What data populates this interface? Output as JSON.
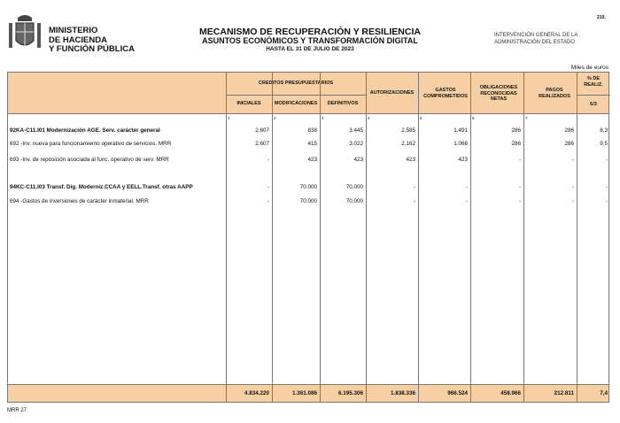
{
  "header": {
    "ministry": [
      "MINISTERIO",
      "DE HACIENDA",
      "Y FUNCIÓN PÚBLICA"
    ],
    "title": "MECANISMO DE RECUPERACIÓN Y RESILIENCIA",
    "subtitle": "ASUNTOS ECONÓMICOS Y TRANSFORMACIÓN DIGITAL",
    "date": "HASTA EL 31 DE JULIO DE 2023",
    "intervencion": [
      "INTERVENCIÓN GENERAL DE LA",
      "ADMINISTRACIÓN DEL ESTADO"
    ],
    "page": "219.",
    "units": "Miles de euros"
  },
  "table": {
    "group_header": "CREDITOS PRESUPUESTARIOS",
    "columns": [
      "INICIALES",
      "MODIFICACIONES",
      "DEFINITIVOS",
      "AUTORIZACIONES",
      "GASTOS COMPROMETIDOS",
      "OBLIGACIONES RECONOCIDAS NETAS",
      "PAGOS REALIZADOS",
      "% DE REALIZ."
    ],
    "pct_formula": "6/3",
    "col_numbers": [
      "1",
      "2",
      "3",
      "4",
      "5",
      "6",
      "7"
    ],
    "rows": [
      {
        "desc": "92KA-C11.I01 Modernización AGE. Serv. carácter general",
        "bold": true,
        "values": [
          "2.607",
          "838",
          "3.445",
          "2.585",
          "1.491",
          "286",
          "286",
          "8,3"
        ]
      },
      {
        "desc": "692  -Inv. nueva para funcionamiento operativo de servicios. MRR",
        "bold": false,
        "values": [
          "2.607",
          "415",
          "3.022",
          "2.162",
          "1.068",
          "286",
          "286",
          "9,5"
        ]
      },
      {
        "desc": "693  -Inv. de reposición asociada al func. operativo de serv. MRR",
        "bold": false,
        "values": [
          "-",
          "423",
          "423",
          "423",
          "423",
          "-",
          "-",
          "-"
        ]
      },
      {
        "desc": "94KC-C11.I03 Transf. Dig. Moderniz.CCAA y EELL.Transf. otras AAPP",
        "bold": true,
        "values": [
          "-",
          "70.000",
          "70.000",
          "-",
          "-",
          "-",
          "-",
          "-"
        ]
      },
      {
        "desc": "694  -Gastos de inversiones de carácter inmaterial. MRR",
        "bold": false,
        "values": [
          "-",
          "70.000",
          "70.000",
          "-",
          "-",
          "-",
          "-",
          "-"
        ]
      }
    ],
    "totals": [
      "4.834.220",
      "1.361.086",
      "6.195.306",
      "1.838.336",
      "966.524",
      "458.966",
      "212.811",
      "7,4"
    ]
  },
  "footer": "MRR 27"
}
